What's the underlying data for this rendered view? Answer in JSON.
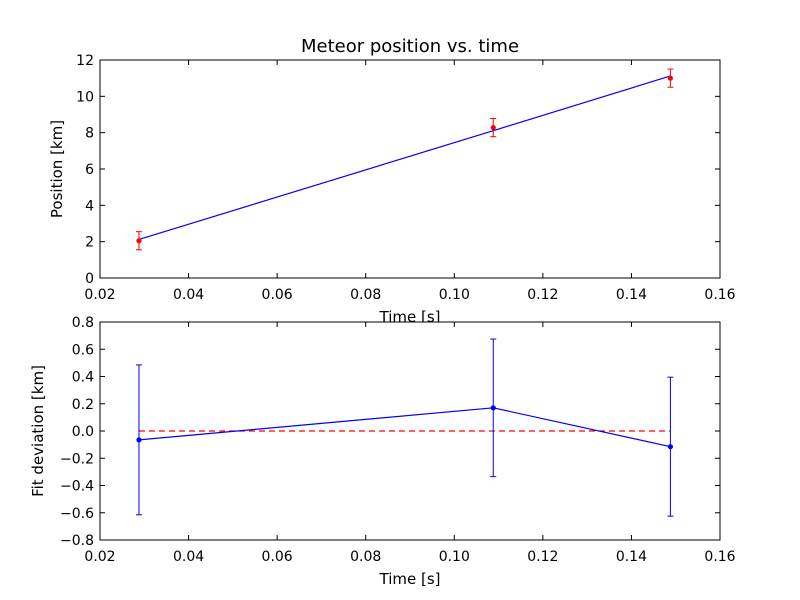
{
  "chart_data": [
    {
      "type": "line",
      "title": "Meteor position vs. time",
      "xlabel": "Time [s]",
      "ylabel": "Position [km]",
      "xlim": [
        0.02,
        0.16
      ],
      "ylim": [
        0,
        12
      ],
      "xticks": [
        "0.02",
        "0.04",
        "0.06",
        "0.08",
        "0.10",
        "0.12",
        "0.14",
        "0.16"
      ],
      "yticks": [
        "0",
        "2",
        "4",
        "6",
        "8",
        "10",
        "12"
      ],
      "grid": false,
      "colors": {
        "fit_line": "#0000ff",
        "points": "#ff0000",
        "errorbars": "#ff0000"
      },
      "points": {
        "x": [
          0.0288,
          0.1088,
          0.1488
        ],
        "y": [
          2.05,
          8.28,
          11.0
        ],
        "yerr": [
          0.5,
          0.5,
          0.5
        ]
      },
      "fit_line": {
        "x": [
          0.0288,
          0.1088,
          0.1488
        ],
        "y": [
          2.12,
          8.11,
          11.12
        ]
      }
    },
    {
      "type": "line",
      "title": "",
      "xlabel": "Time [s]",
      "ylabel": "Fit deviation [km]",
      "xlim": [
        0.02,
        0.16
      ],
      "ylim": [
        -0.8,
        0.8
      ],
      "xticks": [
        "0.02",
        "0.04",
        "0.06",
        "0.08",
        "0.10",
        "0.12",
        "0.14",
        "0.16"
      ],
      "yticks": [
        "−0.8",
        "−0.6",
        "−0.4",
        "−0.2",
        "0.0",
        "0.2",
        "0.4",
        "0.6",
        "0.8"
      ],
      "grid": false,
      "colors": {
        "series": "#0000ff",
        "zero_line": "#ff0000"
      },
      "series": {
        "x": [
          0.0288,
          0.1088,
          0.1488
        ],
        "y": [
          -0.065,
          0.17,
          -0.115
        ],
        "yerr": [
          0.55,
          0.505,
          0.51
        ]
      },
      "zero_line": {
        "y": 0,
        "x": [
          0.0288,
          0.1488
        ],
        "style": "dashed"
      }
    }
  ]
}
